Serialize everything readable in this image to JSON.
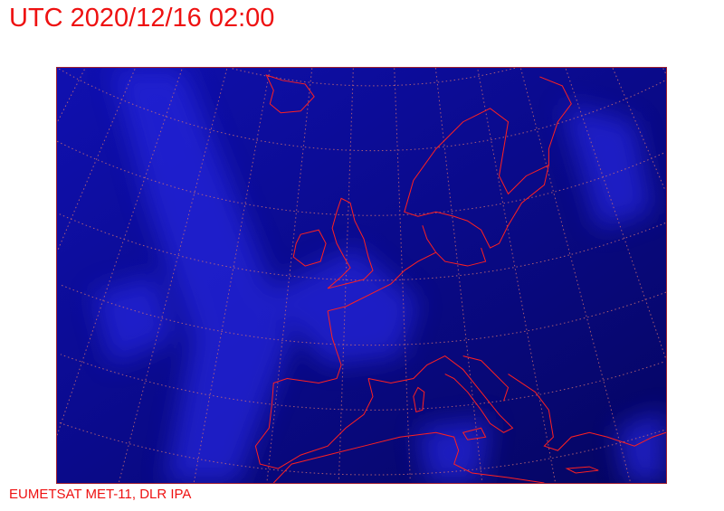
{
  "header": {
    "title": "UTC 2020/12/16 02:00"
  },
  "footer": {
    "credit": "EUMETSAT MET-11, DLR IPA"
  },
  "map": {
    "imagery": "satellite infrared (blue colour table)",
    "region": "Europe",
    "colors": {
      "background": "#0a0a80",
      "cloud": "#2a2af0",
      "coastline": "#ff2020",
      "graticule": "#d07070"
    },
    "graticule": "dotted"
  }
}
